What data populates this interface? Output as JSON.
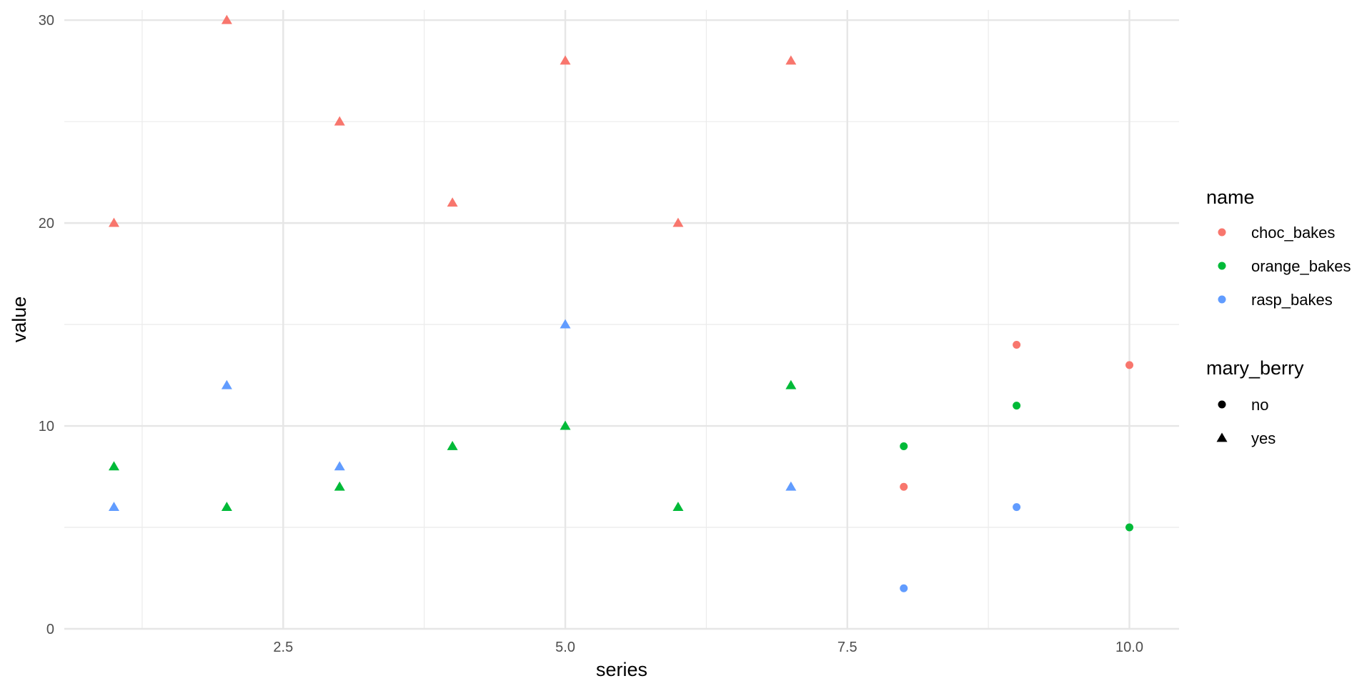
{
  "chart_data": {
    "type": "scatter",
    "title": "",
    "xlabel": "series",
    "ylabel": "value",
    "xlim": [
      0.56,
      10.44
    ],
    "ylim": [
      0,
      30.5
    ],
    "x_ticks": [
      2.5,
      5.0,
      7.5,
      10.0
    ],
    "x_tick_labels": [
      "2.5",
      "5.0",
      "7.5",
      "10.0"
    ],
    "x_minor_ticks": [
      1.25,
      3.75,
      6.25,
      8.75
    ],
    "y_ticks": [
      0,
      10,
      20,
      30
    ],
    "y_tick_labels": [
      "0",
      "10",
      "20",
      "30"
    ],
    "y_minor_ticks": [
      5,
      15,
      25
    ],
    "grid": true,
    "legend_position": "right",
    "color_legend": {
      "title": "name",
      "entries": [
        {
          "label": "choc_bakes",
          "color": "#F8766D"
        },
        {
          "label": "orange_bakes",
          "color": "#00BA38"
        },
        {
          "label": "rasp_bakes",
          "color": "#619CFF"
        }
      ]
    },
    "shape_legend": {
      "title": "mary_berry",
      "entries": [
        {
          "label": "no",
          "shape": "circle"
        },
        {
          "label": "yes",
          "shape": "triangle"
        }
      ]
    },
    "series": [
      {
        "name": "choc_bakes",
        "color": "#F8766D",
        "points": [
          {
            "x": 1,
            "y": 20,
            "mary_berry": "yes"
          },
          {
            "x": 2,
            "y": 30,
            "mary_berry": "yes"
          },
          {
            "x": 3,
            "y": 25,
            "mary_berry": "yes"
          },
          {
            "x": 4,
            "y": 21,
            "mary_berry": "yes"
          },
          {
            "x": 5,
            "y": 28,
            "mary_berry": "yes"
          },
          {
            "x": 6,
            "y": 20,
            "mary_berry": "yes"
          },
          {
            "x": 7,
            "y": 28,
            "mary_berry": "yes"
          },
          {
            "x": 8,
            "y": 7,
            "mary_berry": "no"
          },
          {
            "x": 9,
            "y": 14,
            "mary_berry": "no"
          },
          {
            "x": 10,
            "y": 13,
            "mary_berry": "no"
          }
        ]
      },
      {
        "name": "orange_bakes",
        "color": "#00BA38",
        "points": [
          {
            "x": 1,
            "y": 8,
            "mary_berry": "yes"
          },
          {
            "x": 2,
            "y": 6,
            "mary_berry": "yes"
          },
          {
            "x": 3,
            "y": 7,
            "mary_berry": "yes"
          },
          {
            "x": 4,
            "y": 9,
            "mary_berry": "yes"
          },
          {
            "x": 5,
            "y": 10,
            "mary_berry": "yes"
          },
          {
            "x": 6,
            "y": 6,
            "mary_berry": "yes"
          },
          {
            "x": 7,
            "y": 12,
            "mary_berry": "yes"
          },
          {
            "x": 8,
            "y": 9,
            "mary_berry": "no"
          },
          {
            "x": 9,
            "y": 11,
            "mary_berry": "no"
          },
          {
            "x": 10,
            "y": 5,
            "mary_berry": "no"
          }
        ]
      },
      {
        "name": "rasp_bakes",
        "color": "#619CFF",
        "points": [
          {
            "x": 1,
            "y": 6,
            "mary_berry": "yes"
          },
          {
            "x": 2,
            "y": 12,
            "mary_berry": "yes"
          },
          {
            "x": 3,
            "y": 8,
            "mary_berry": "yes"
          },
          {
            "x": 5,
            "y": 15,
            "mary_berry": "yes"
          },
          {
            "x": 7,
            "y": 7,
            "mary_berry": "yes"
          },
          {
            "x": 8,
            "y": 2,
            "mary_berry": "no"
          },
          {
            "x": 9,
            "y": 6,
            "mary_berry": "no"
          }
        ]
      }
    ]
  }
}
